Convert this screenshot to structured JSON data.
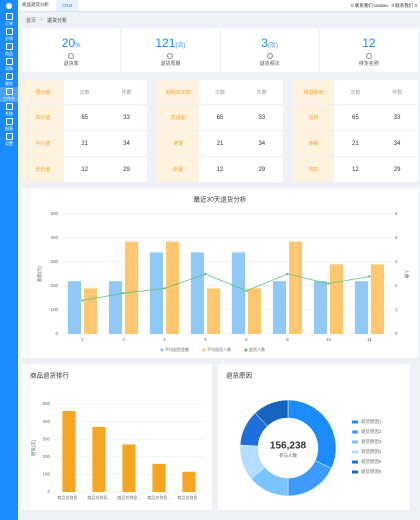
{
  "topbar": {
    "tabs": [
      "商品退货分析",
      "CRM"
    ],
    "user": "0 联系我们·taobao",
    "shop": "0 联系我们 0"
  },
  "sidebar": [
    "订单",
    "分销",
    "商品",
    "采购",
    "服务",
    "工作台",
    "系统",
    "报表",
    "设置"
  ],
  "breadcrumb": [
    "首页",
    "退货分析"
  ],
  "stats": [
    {
      "value": 20,
      "unit": "%",
      "label": "退货率"
    },
    {
      "value": 121,
      "unit": "(次)",
      "label": "退货周期"
    },
    {
      "value": 3,
      "unit": "(次)",
      "label": "退货频次"
    },
    {
      "value": 12,
      "label": "待定名称"
    }
  ],
  "tables": [
    {
      "title": "预价值",
      "columns": [
        "次数",
        "件数"
      ],
      "rows": [
        [
          "高价值",
          65,
          33
        ],
        [
          "中价值",
          21,
          34
        ],
        [
          "低价值",
          12,
          29
        ]
      ]
    },
    {
      "title": "频购买次数",
      "columns": [
        "次数",
        "件数"
      ],
      "rows": [
        [
          "忠诚客",
          65,
          33
        ],
        [
          "老客",
          21,
          34
        ],
        [
          "新客",
          12,
          29
        ]
      ]
    },
    {
      "title": "频退新度",
      "columns": [
        "次数",
        "件数"
      ],
      "rows": [
        [
          "活跃",
          65,
          33
        ],
        [
          "休眠",
          21,
          34
        ],
        [
          "流失",
          12,
          29
        ]
      ]
    }
  ],
  "chart_data": [
    {
      "type": "bar",
      "title": "最近30天退货分析",
      "categories": [
        "1",
        "3",
        "4",
        "5",
        "6",
        "8",
        "10",
        "11"
      ],
      "series": [
        {
          "name": "平均退货金额",
          "color": "#90c9f5",
          "values": [
            220,
            220,
            340,
            340,
            340,
            220,
            220,
            220
          ]
        },
        {
          "name": "平均退货人数",
          "color": "#ffc870",
          "values": [
            190,
            385,
            385,
            190,
            190,
            385,
            290,
            290
          ]
        },
        {
          "name": "退货人数",
          "color": "#5cbf7a",
          "type": "line",
          "axis": "y2",
          "values": [
            1.4,
            1.7,
            1.9,
            2.5,
            1.8,
            2.5,
            2.1,
            2.4
          ]
        }
      ],
      "ylabel": "金额(元)",
      "y2label": "人数",
      "ylim": [
        0,
        500
      ],
      "yticks": [
        0,
        100,
        200,
        300,
        400,
        500
      ],
      "y2lim": [
        0,
        5
      ],
      "y2ticks": [
        0,
        1,
        2,
        3,
        4,
        5
      ],
      "grid": true,
      "legend": "bottom"
    },
    {
      "type": "bar",
      "title": "商品退货排行",
      "categories": [
        "商品名称显...",
        "商品名称显...",
        "商品名称显...",
        "商品名称显...",
        "商品名称显..."
      ],
      "values": [
        460,
        370,
        270,
        160,
        115
      ],
      "color": "#f5a623",
      "ylabel": "退货(次)",
      "ylim": [
        0,
        500
      ],
      "yticks": [
        0,
        100,
        200,
        300,
        400,
        500
      ],
      "grid": true
    },
    {
      "type": "pie",
      "title": "退货原因",
      "donut": true,
      "categories": [
        "退货原因1",
        "退货原因2",
        "退货原因3",
        "退货原因4",
        "退货原因5",
        "退货原因6"
      ],
      "values": [
        32,
        18,
        14,
        12,
        12,
        12
      ],
      "colors": [
        "#1a8cff",
        "#3d9bff",
        "#7cc4ff",
        "#b3dcff",
        "#1e6fd9",
        "#1565c0"
      ],
      "center_value": "156,238",
      "center_label": "参与人数",
      "legend": "right"
    }
  ]
}
